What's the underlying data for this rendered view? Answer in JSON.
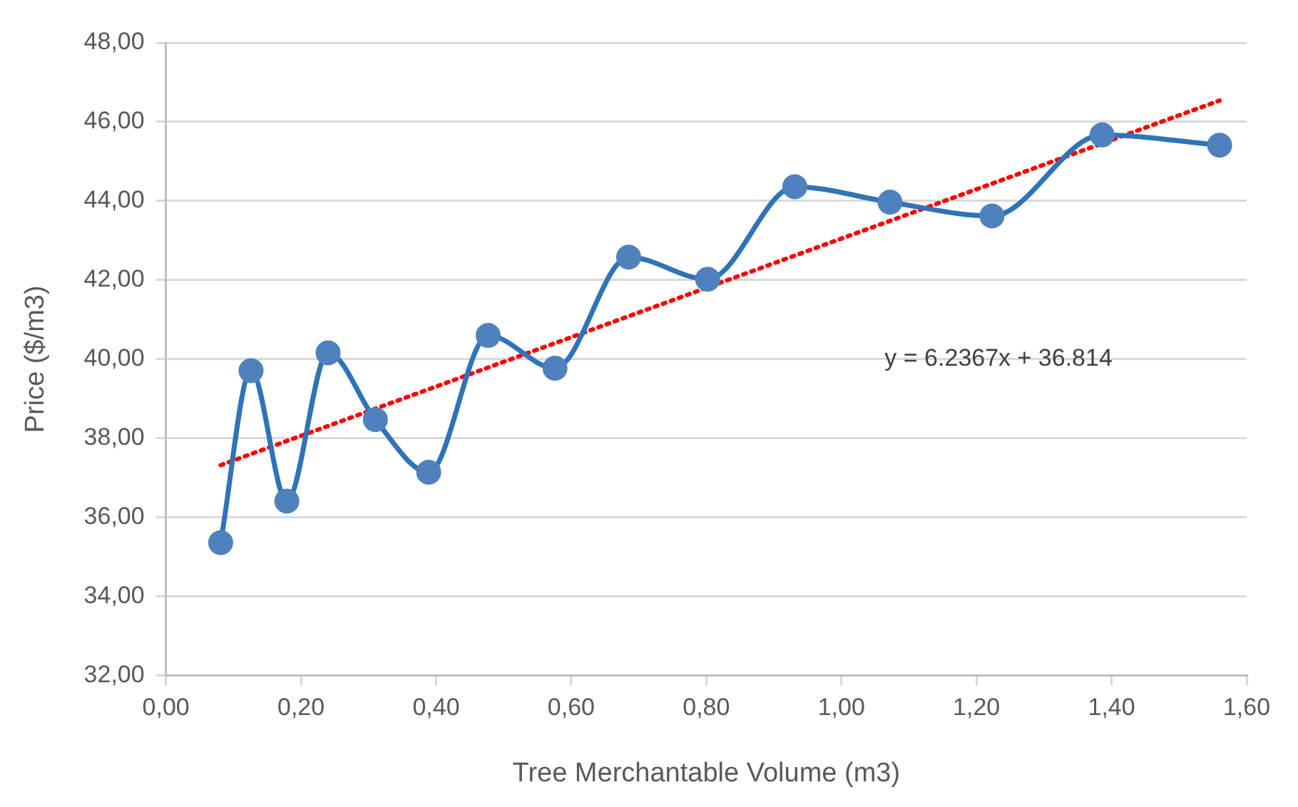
{
  "chart_data": {
    "type": "line",
    "xlabel": "Tree Merchantable Volume (m3)",
    "ylabel": "Price ($/m3)",
    "xlim": [
      0,
      1.6
    ],
    "xticks": [
      {
        "value": 0,
        "label": "0,00"
      },
      {
        "value": 0.2,
        "label": "0,20"
      },
      {
        "value": 0.4,
        "label": "0,40"
      },
      {
        "value": 0.6,
        "label": "0,60"
      },
      {
        "value": 0.8,
        "label": "0,80"
      },
      {
        "value": 1.0,
        "label": "1,00"
      },
      {
        "value": 1.2,
        "label": "1,20"
      },
      {
        "value": 1.4,
        "label": "1,40"
      },
      {
        "value": 1.6,
        "label": "1,60"
      }
    ],
    "ylim": [
      32,
      48
    ],
    "yticks": [
      {
        "value": 32,
        "label": "32,00"
      },
      {
        "value": 34,
        "label": "34,00"
      },
      {
        "value": 36,
        "label": "36,00"
      },
      {
        "value": 38,
        "label": "38,00"
      },
      {
        "value": 40,
        "label": "40,00"
      },
      {
        "value": 42,
        "label": "42,00"
      },
      {
        "value": 44,
        "label": "44,00"
      },
      {
        "value": 46,
        "label": "46,00"
      },
      {
        "value": 48,
        "label": "48,00"
      }
    ],
    "grid": "y",
    "legend": false,
    "annotations": [
      "y = 6.2367x + 36.814"
    ],
    "series": [
      {
        "color": "#2f73b8",
        "marker": "circle",
        "line_style": "solid",
        "x": [
          0.081,
          0.126,
          0.179,
          0.24,
          0.31,
          0.389,
          0.477,
          0.576,
          0.685,
          0.802,
          0.931,
          1.072,
          1.223,
          1.386,
          1.56
        ],
        "values": [
          35.36,
          39.71,
          36.41,
          40.16,
          38.47,
          37.14,
          40.6,
          39.77,
          42.58,
          42.02,
          44.36,
          43.97,
          43.62,
          45.67,
          45.41
        ]
      },
      {
        "color": "#ff0000",
        "marker": "none",
        "line_style": "dotted",
        "x": [
          0.081,
          1.56
        ],
        "values": [
          37.32,
          46.54
        ]
      }
    ]
  }
}
